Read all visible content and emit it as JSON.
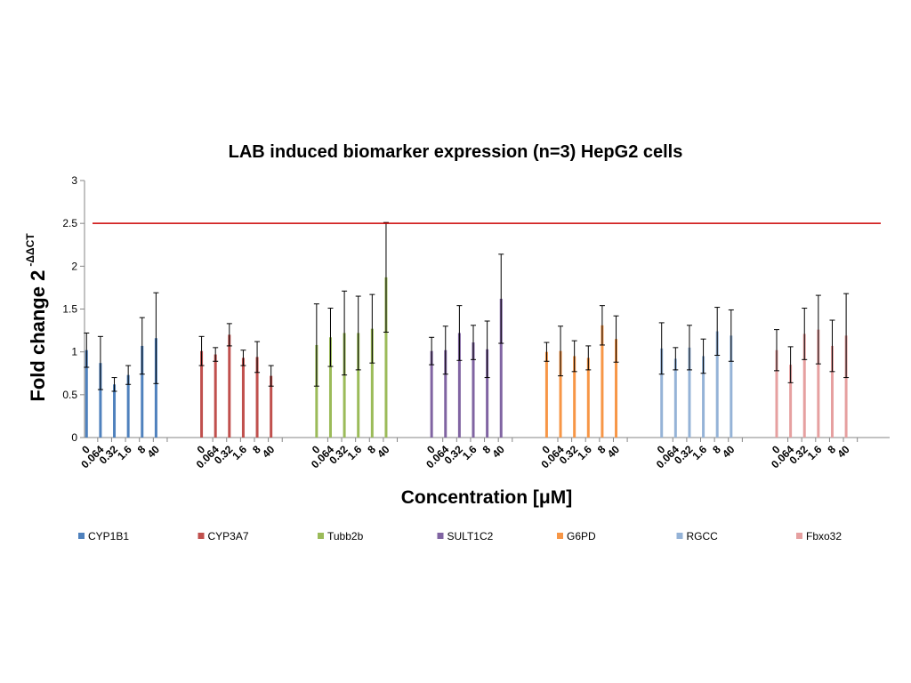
{
  "chart_data": {
    "type": "bar",
    "title": "LAB induced biomarker expression (n=3) HepG2 cells",
    "xlabel": "Concentration [μM]",
    "ylabel": "Fold change 2",
    "ylabel_superscript": "-ΔΔCT",
    "categories": [
      "0",
      "0.064",
      "0.32",
      "1.6",
      "8",
      "40"
    ],
    "ylim": [
      0,
      3
    ],
    "yticks": [
      0,
      0.5,
      1,
      1.5,
      2,
      2.5,
      3
    ],
    "threshold_line": {
      "y": 2.5,
      "color": "#cc0000"
    },
    "legend_position": "bottom",
    "series": [
      {
        "name": "CYP1B1",
        "color": "#4f81bd",
        "values": [
          1.02,
          0.87,
          0.62,
          0.73,
          1.07,
          1.16
        ],
        "errors": [
          0.2,
          0.31,
          0.08,
          0.11,
          0.33,
          0.53
        ]
      },
      {
        "name": "CYP3A7",
        "color": "#c0504d",
        "values": [
          1.01,
          0.97,
          1.2,
          0.93,
          0.94,
          0.72
        ],
        "errors": [
          0.17,
          0.08,
          0.13,
          0.09,
          0.18,
          0.12
        ]
      },
      {
        "name": "Tubb2b",
        "color": "#9bbb59",
        "values": [
          1.08,
          1.17,
          1.22,
          1.22,
          1.27,
          1.87
        ],
        "errors": [
          0.48,
          0.34,
          0.49,
          0.43,
          0.4,
          0.64
        ]
      },
      {
        "name": "SULT1C2",
        "color": "#8064a2",
        "values": [
          1.01,
          1.02,
          1.22,
          1.11,
          1.03,
          1.62
        ],
        "errors": [
          0.16,
          0.28,
          0.32,
          0.2,
          0.33,
          0.52
        ]
      },
      {
        "name": "G6PD",
        "color": "#f79646",
        "values": [
          1.0,
          1.01,
          0.95,
          0.93,
          1.31,
          1.15
        ],
        "errors": [
          0.11,
          0.29,
          0.18,
          0.14,
          0.23,
          0.27
        ]
      },
      {
        "name": "RGCC",
        "color": "#95b3d7",
        "values": [
          1.04,
          0.92,
          1.05,
          0.95,
          1.24,
          1.19
        ],
        "errors": [
          0.3,
          0.13,
          0.26,
          0.2,
          0.28,
          0.3
        ]
      },
      {
        "name": "Fbxo32",
        "color": "#e6a0a0",
        "values": [
          1.02,
          0.85,
          1.21,
          1.26,
          1.07,
          1.19
        ],
        "errors": [
          0.24,
          0.21,
          0.3,
          0.4,
          0.3,
          0.49
        ]
      }
    ]
  }
}
